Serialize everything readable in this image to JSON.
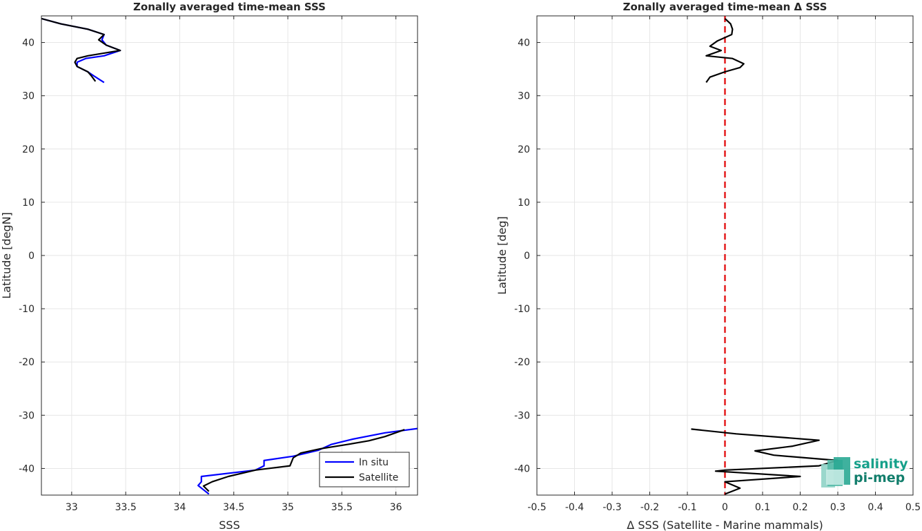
{
  "chart_data": [
    {
      "type": "line",
      "title": "Zonally averaged time-mean SSS",
      "xlabel": "SSS",
      "ylabel": "Latitude [degN]",
      "xlim": [
        32.72,
        36.2
      ],
      "ylim": [
        -45,
        45
      ],
      "xticks": [
        "33",
        "33.5",
        "34",
        "34.5",
        "35",
        "35.5",
        "36"
      ],
      "yticks": [
        "40",
        "30",
        "20",
        "10",
        "0",
        "-10",
        "-20",
        "-30",
        "-40"
      ],
      "grid": true,
      "legend": {
        "position": "bottom-right",
        "entries": [
          "In situ",
          "Satellite"
        ]
      },
      "series": [
        {
          "name": "In situ",
          "color": "#0000ff",
          "segments": [
            [
              [
                32.72,
                44.5
              ],
              [
                32.9,
                43.5
              ],
              [
                33.15,
                42.5
              ],
              [
                33.3,
                41.5
              ],
              [
                33.28,
                40.5
              ],
              [
                33.32,
                39.5
              ],
              [
                33.45,
                38.5
              ],
              [
                33.3,
                37.5
              ],
              [
                33.13,
                37.0
              ],
              [
                33.05,
                36.3
              ],
              [
                33.05,
                35.5
              ],
              [
                33.15,
                34.5
              ],
              [
                33.2,
                33.8
              ],
              [
                33.3,
                32.5
              ]
            ],
            [
              [
                36.2,
                -32.5
              ],
              [
                35.9,
                -33.3
              ],
              [
                35.6,
                -34.5
              ],
              [
                35.4,
                -35.5
              ],
              [
                35.28,
                -36.6
              ],
              [
                35.05,
                -37.7
              ],
              [
                34.78,
                -38.5
              ],
              [
                34.78,
                -39.5
              ],
              [
                34.7,
                -40.3
              ],
              [
                34.2,
                -41.5
              ],
              [
                34.2,
                -42.5
              ],
              [
                34.17,
                -43.2
              ],
              [
                34.22,
                -44.0
              ],
              [
                34.27,
                -44.8
              ]
            ]
          ]
        },
        {
          "name": "Satellite",
          "color": "#000000",
          "segments": [
            [
              [
                32.72,
                44.5
              ],
              [
                32.9,
                43.5
              ],
              [
                33.15,
                42.5
              ],
              [
                33.3,
                41.5
              ],
              [
                33.25,
                40.5
              ],
              [
                33.32,
                39.5
              ],
              [
                33.45,
                38.5
              ],
              [
                33.15,
                37.5
              ],
              [
                33.05,
                37.0
              ],
              [
                33.03,
                36.3
              ],
              [
                33.05,
                35.5
              ],
              [
                33.15,
                34.5
              ],
              [
                33.18,
                33.8
              ],
              [
                33.22,
                32.7
              ]
            ],
            [
              [
                36.08,
                -32.7
              ],
              [
                35.9,
                -34.0
              ],
              [
                35.75,
                -34.8
              ],
              [
                35.55,
                -35.5
              ],
              [
                35.3,
                -36.3
              ],
              [
                35.12,
                -37.1
              ],
              [
                35.05,
                -38.0
              ],
              [
                35.02,
                -39.5
              ],
              [
                34.7,
                -40.3
              ],
              [
                34.45,
                -41.5
              ],
              [
                34.3,
                -42.5
              ],
              [
                34.22,
                -43.3
              ],
              [
                34.27,
                -44.3
              ]
            ]
          ]
        }
      ]
    },
    {
      "type": "line",
      "title": "Zonally averaged time-mean Δ SSS",
      "xlabel": "Δ SSS (Satellite - Marine mammals)",
      "ylabel": "Latitude [deg]",
      "xlim": [
        -0.5,
        0.5
      ],
      "ylim": [
        -45,
        45
      ],
      "xticks": [
        "-0.5",
        "-0.4",
        "-0.3",
        "-0.2",
        "-0.1",
        "0",
        "0.1",
        "0.2",
        "0.3",
        "0.4",
        "0.5"
      ],
      "yticks": [
        "40",
        "30",
        "20",
        "10",
        "0",
        "-10",
        "-20",
        "-30",
        "-40"
      ],
      "grid": true,
      "zero_line": {
        "x": 0,
        "color": "#e41a1c",
        "style": "dashed"
      },
      "series": [
        {
          "name": "",
          "color": "#000000",
          "segments": [
            [
              [
                0.0,
                44.5
              ],
              [
                0.015,
                43.5
              ],
              [
                0.02,
                42.5
              ],
              [
                0.018,
                41.5
              ],
              [
                -0.02,
                40.3
              ],
              [
                -0.04,
                39.3
              ],
              [
                -0.01,
                38.5
              ],
              [
                -0.05,
                37.5
              ],
              [
                0.02,
                37.0
              ],
              [
                0.05,
                36.0
              ],
              [
                0.04,
                35.3
              ],
              [
                0.0,
                34.5
              ],
              [
                -0.04,
                33.5
              ],
              [
                -0.05,
                32.5
              ]
            ],
            [
              [
                -0.09,
                -32.6
              ],
              [
                0.03,
                -33.5
              ],
              [
                0.25,
                -34.7
              ],
              [
                0.18,
                -35.8
              ],
              [
                0.08,
                -36.7
              ],
              [
                0.13,
                -37.5
              ],
              [
                0.3,
                -38.5
              ],
              [
                0.25,
                -39.5
              ],
              [
                0.0,
                -40.3
              ],
              [
                -0.025,
                -40.5
              ],
              [
                0.2,
                -41.5
              ],
              [
                0.0,
                -42.5
              ],
              [
                0.04,
                -43.7
              ],
              [
                0.0,
                -44.8
              ]
            ]
          ]
        }
      ]
    }
  ],
  "logo": {
    "line1": "salinity",
    "line2": "pi-mep",
    "color": "#16a08a"
  }
}
